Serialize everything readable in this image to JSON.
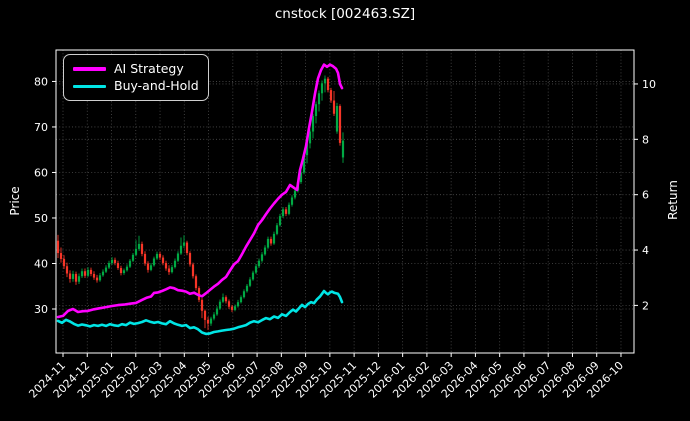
{
  "title": "cnstock [002463.SZ]",
  "axes": {
    "left_label": "Price",
    "right_label": "Return"
  },
  "legend": {
    "items": [
      {
        "label": "AI Strategy",
        "color": "#ff00ff"
      },
      {
        "label": "Buy-and-Hold",
        "color": "#00e5e5"
      }
    ]
  },
  "chart_data": {
    "type": "candlestick",
    "title": "cnstock [002463.SZ]",
    "grid": true,
    "legend_position": "upper-left",
    "price_axis": {
      "label": "Price",
      "ticks": [
        30,
        40,
        50,
        60,
        70,
        80
      ]
    },
    "return_axis": {
      "label": "Return",
      "ticks": [
        2,
        4,
        6,
        8,
        10
      ]
    },
    "x_tick_labels": [
      "2024-11",
      "2024-12",
      "2025-01",
      "2025-02",
      "2025-03",
      "2025-04",
      "2025-05",
      "2025-06",
      "2025-07",
      "2025-08",
      "2025-09",
      "2025-10",
      "2025-11",
      "2025-12",
      "2026-01",
      "2026-02",
      "2026-03",
      "2026-04",
      "2026-05",
      "2026-06",
      "2026-07",
      "2026-08",
      "2026-09",
      "2026-10"
    ],
    "candle_colors": {
      "up": "#00a944",
      "down": "#f73527"
    },
    "candles": {
      "x_start": 58,
      "x_step": 3,
      "ohlc": [
        [
          45.0,
          46.3,
          41.2,
          42.3
        ],
        [
          42.3,
          43.5,
          40.2,
          41.0
        ],
        [
          41.0,
          41.8,
          38.8,
          39.4
        ],
        [
          39.4,
          40.2,
          37.0,
          37.8
        ],
        [
          37.8,
          38.5,
          35.8,
          36.6
        ],
        [
          36.6,
          38.4,
          36.0,
          37.7
        ],
        [
          37.7,
          38.2,
          35.3,
          36.0
        ],
        [
          36.0,
          37.8,
          35.5,
          37.2
        ],
        [
          37.2,
          38.9,
          36.8,
          38.3
        ],
        [
          38.3,
          38.9,
          36.8,
          37.3
        ],
        [
          37.3,
          39.2,
          37.0,
          38.6
        ],
        [
          38.6,
          39.1,
          37.2,
          37.7
        ],
        [
          37.7,
          38.3,
          36.4,
          36.9
        ],
        [
          36.9,
          37.5,
          35.8,
          36.3
        ],
        [
          36.3,
          37.9,
          36.0,
          37.4
        ],
        [
          37.4,
          38.7,
          37.1,
          38.2
        ],
        [
          38.2,
          39.6,
          37.9,
          39.1
        ],
        [
          39.1,
          40.6,
          38.8,
          40.1
        ],
        [
          40.1,
          41.4,
          39.7,
          40.8
        ],
        [
          40.8,
          41.3,
          39.6,
          40.1
        ],
        [
          40.1,
          40.6,
          38.6,
          39.0
        ],
        [
          39.0,
          39.5,
          37.4,
          37.9
        ],
        [
          37.9,
          38.9,
          37.5,
          38.5
        ],
        [
          38.5,
          39.8,
          38.2,
          39.3
        ],
        [
          39.3,
          41.0,
          39.0,
          40.6
        ],
        [
          40.6,
          42.3,
          40.3,
          41.9
        ],
        [
          41.9,
          45.1,
          41.6,
          43.2
        ],
        [
          43.2,
          46.1,
          42.8,
          44.3
        ],
        [
          44.3,
          44.8,
          41.6,
          42.1
        ],
        [
          42.1,
          42.7,
          39.5,
          40.0
        ],
        [
          40.0,
          40.5,
          38.0,
          38.6
        ],
        [
          38.6,
          40.1,
          38.3,
          39.6
        ],
        [
          39.6,
          41.5,
          39.3,
          41.1
        ],
        [
          41.1,
          42.6,
          40.8,
          42.1
        ],
        [
          42.1,
          42.6,
          40.8,
          41.3
        ],
        [
          41.3,
          41.8,
          39.6,
          40.1
        ],
        [
          40.1,
          40.6,
          38.4,
          38.9
        ],
        [
          38.9,
          39.6,
          37.5,
          38.1
        ],
        [
          38.1,
          39.7,
          37.8,
          39.2
        ],
        [
          39.2,
          41.1,
          38.9,
          40.6
        ],
        [
          40.6,
          42.7,
          40.3,
          42.2
        ],
        [
          42.2,
          45.7,
          41.9,
          43.9
        ],
        [
          43.9,
          46.2,
          43.4,
          44.6
        ],
        [
          44.6,
          45.0,
          41.8,
          42.3
        ],
        [
          42.3,
          42.7,
          39.3,
          39.8
        ],
        [
          39.8,
          40.2,
          36.7,
          37.2
        ],
        [
          37.2,
          37.6,
          34.1,
          34.6
        ],
        [
          34.6,
          35.0,
          31.5,
          32.0
        ],
        [
          32.0,
          32.4,
          28.0,
          29.6
        ],
        [
          29.6,
          29.9,
          25.8,
          27.6
        ],
        [
          27.6,
          28.3,
          25.4,
          26.8
        ],
        [
          26.8,
          28.3,
          26.3,
          27.9
        ],
        [
          27.9,
          29.3,
          27.5,
          28.8
        ],
        [
          28.8,
          30.6,
          28.5,
          30.1
        ],
        [
          30.1,
          32.1,
          29.8,
          31.6
        ],
        [
          31.6,
          33.4,
          31.3,
          32.6
        ],
        [
          32.6,
          33.0,
          31.2,
          31.7
        ],
        [
          31.7,
          32.1,
          30.0,
          30.5
        ],
        [
          30.5,
          30.9,
          29.3,
          29.8
        ],
        [
          29.8,
          31.0,
          29.5,
          30.6
        ],
        [
          30.6,
          32.0,
          30.3,
          31.5
        ],
        [
          31.5,
          33.0,
          31.2,
          32.6
        ],
        [
          32.6,
          34.3,
          32.3,
          33.9
        ],
        [
          33.9,
          35.5,
          33.6,
          35.1
        ],
        [
          35.1,
          37.0,
          34.8,
          36.5
        ],
        [
          36.5,
          38.4,
          36.2,
          38.0
        ],
        [
          38.0,
          39.9,
          37.7,
          39.4
        ],
        [
          39.4,
          41.1,
          39.0,
          40.6
        ],
        [
          40.6,
          42.5,
          40.2,
          42.0
        ],
        [
          42.0,
          44.0,
          41.7,
          43.5
        ],
        [
          43.5,
          45.9,
          43.2,
          45.4
        ],
        [
          45.4,
          45.9,
          43.9,
          44.4
        ],
        [
          44.4,
          47.0,
          44.1,
          46.5
        ],
        [
          46.5,
          48.9,
          46.2,
          48.4
        ],
        [
          48.4,
          50.9,
          48.1,
          50.4
        ],
        [
          50.4,
          52.4,
          50.0,
          51.9
        ],
        [
          51.9,
          52.4,
          50.4,
          50.9
        ],
        [
          50.9,
          53.4,
          50.6,
          52.9
        ],
        [
          52.9,
          55.0,
          52.5,
          54.5
        ],
        [
          54.5,
          56.5,
          54.1,
          56.0
        ],
        [
          56.0,
          58.4,
          55.6,
          57.9
        ],
        [
          57.9,
          60.5,
          57.5,
          60.0
        ],
        [
          60.0,
          64.3,
          59.6,
          63.8
        ],
        [
          63.8,
          67.0,
          62.0,
          66.4
        ],
        [
          66.4,
          69.5,
          65.3,
          69.0
        ],
        [
          69.0,
          72.9,
          67.5,
          72.4
        ],
        [
          72.4,
          75.6,
          70.8,
          75.0
        ],
        [
          75.0,
          78.0,
          73.4,
          77.4
        ],
        [
          77.4,
          80.2,
          75.8,
          79.6
        ],
        [
          79.6,
          81.3,
          77.6,
          80.6
        ],
        [
          80.6,
          81.0,
          77.6,
          78.1
        ],
        [
          78.1,
          78.6,
          75.3,
          75.8
        ],
        [
          75.8,
          77.9,
          72.4,
          72.9
        ],
        [
          69.0,
          75.3,
          68.5,
          74.6
        ],
        [
          74.6,
          75.0,
          65.9,
          66.5
        ],
        [
          63.3,
          68.8,
          62.1,
          67.0
        ]
      ]
    },
    "series": [
      {
        "name": "AI Strategy",
        "axis": "return",
        "color": "#ff00ff",
        "points": [
          [
            58,
            1.58
          ],
          [
            63,
            1.62
          ],
          [
            68,
            1.8
          ],
          [
            73,
            1.87
          ],
          [
            78,
            1.76
          ],
          [
            83,
            1.79
          ],
          [
            88,
            1.8
          ],
          [
            94,
            1.86
          ],
          [
            100,
            1.9
          ],
          [
            106,
            1.94
          ],
          [
            112,
            1.98
          ],
          [
            118,
            2.01
          ],
          [
            124,
            2.03
          ],
          [
            130,
            2.06
          ],
          [
            136,
            2.09
          ],
          [
            142,
            2.2
          ],
          [
            147,
            2.28
          ],
          [
            151,
            2.32
          ],
          [
            154,
            2.45
          ],
          [
            158,
            2.47
          ],
          [
            162,
            2.52
          ],
          [
            166,
            2.58
          ],
          [
            170,
            2.65
          ],
          [
            174,
            2.62
          ],
          [
            178,
            2.55
          ],
          [
            182,
            2.53
          ],
          [
            186,
            2.5
          ],
          [
            190,
            2.42
          ],
          [
            194,
            2.46
          ],
          [
            198,
            2.38
          ],
          [
            202,
            2.33
          ],
          [
            206,
            2.44
          ],
          [
            210,
            2.56
          ],
          [
            214,
            2.68
          ],
          [
            218,
            2.78
          ],
          [
            222,
            2.92
          ],
          [
            226,
            3.03
          ],
          [
            230,
            3.26
          ],
          [
            234,
            3.48
          ],
          [
            238,
            3.6
          ],
          [
            242,
            3.85
          ],
          [
            246,
            4.12
          ],
          [
            250,
            4.36
          ],
          [
            254,
            4.6
          ],
          [
            258,
            4.9
          ],
          [
            262,
            5.08
          ],
          [
            266,
            5.3
          ],
          [
            270,
            5.5
          ],
          [
            274,
            5.68
          ],
          [
            278,
            5.85
          ],
          [
            282,
            6.0
          ],
          [
            286,
            6.1
          ],
          [
            290,
            6.35
          ],
          [
            294,
            6.25
          ],
          [
            297,
            6.17
          ],
          [
            300,
            6.89
          ],
          [
            303,
            7.3
          ],
          [
            306,
            7.75
          ],
          [
            309,
            8.4
          ],
          [
            312,
            9.0
          ],
          [
            315,
            9.65
          ],
          [
            318,
            10.2
          ],
          [
            321,
            10.5
          ],
          [
            324,
            10.7
          ],
          [
            327,
            10.62
          ],
          [
            330,
            10.7
          ],
          [
            333,
            10.64
          ],
          [
            336,
            10.55
          ],
          [
            338,
            10.4
          ],
          [
            340,
            10.0
          ],
          [
            342,
            9.85
          ]
        ]
      },
      {
        "name": "Buy-and-Hold",
        "axis": "return",
        "color": "#00e5e5",
        "points": [
          [
            58,
            1.44
          ],
          [
            62,
            1.37
          ],
          [
            66,
            1.48
          ],
          [
            70,
            1.42
          ],
          [
            74,
            1.33
          ],
          [
            78,
            1.27
          ],
          [
            82,
            1.31
          ],
          [
            86,
            1.28
          ],
          [
            90,
            1.24
          ],
          [
            94,
            1.29
          ],
          [
            98,
            1.26
          ],
          [
            102,
            1.3
          ],
          [
            106,
            1.26
          ],
          [
            110,
            1.32
          ],
          [
            114,
            1.28
          ],
          [
            118,
            1.26
          ],
          [
            122,
            1.32
          ],
          [
            126,
            1.29
          ],
          [
            130,
            1.38
          ],
          [
            134,
            1.33
          ],
          [
            138,
            1.36
          ],
          [
            142,
            1.4
          ],
          [
            146,
            1.46
          ],
          [
            150,
            1.41
          ],
          [
            154,
            1.37
          ],
          [
            158,
            1.4
          ],
          [
            162,
            1.35
          ],
          [
            166,
            1.32
          ],
          [
            170,
            1.43
          ],
          [
            174,
            1.35
          ],
          [
            178,
            1.3
          ],
          [
            182,
            1.26
          ],
          [
            186,
            1.29
          ],
          [
            190,
            1.18
          ],
          [
            194,
            1.21
          ],
          [
            198,
            1.14
          ],
          [
            202,
            1.02
          ],
          [
            206,
            0.97
          ],
          [
            210,
            0.99
          ],
          [
            214,
            1.04
          ],
          [
            218,
            1.06
          ],
          [
            222,
            1.09
          ],
          [
            226,
            1.11
          ],
          [
            230,
            1.13
          ],
          [
            234,
            1.16
          ],
          [
            238,
            1.21
          ],
          [
            242,
            1.25
          ],
          [
            246,
            1.29
          ],
          [
            250,
            1.38
          ],
          [
            254,
            1.43
          ],
          [
            258,
            1.39
          ],
          [
            262,
            1.47
          ],
          [
            266,
            1.54
          ],
          [
            270,
            1.5
          ],
          [
            274,
            1.6
          ],
          [
            278,
            1.55
          ],
          [
            282,
            1.68
          ],
          [
            286,
            1.62
          ],
          [
            290,
            1.76
          ],
          [
            293,
            1.85
          ],
          [
            296,
            1.78
          ],
          [
            299,
            1.9
          ],
          [
            302,
            2.02
          ],
          [
            305,
            1.94
          ],
          [
            308,
            2.05
          ],
          [
            311,
            2.12
          ],
          [
            314,
            2.08
          ],
          [
            317,
            2.22
          ],
          [
            320,
            2.32
          ],
          [
            322,
            2.42
          ],
          [
            324,
            2.52
          ],
          [
            326,
            2.45
          ],
          [
            328,
            2.4
          ],
          [
            330,
            2.47
          ],
          [
            332,
            2.5
          ],
          [
            334,
            2.46
          ],
          [
            336,
            2.44
          ],
          [
            338,
            2.42
          ],
          [
            340,
            2.3
          ],
          [
            342,
            2.12
          ]
        ]
      }
    ]
  }
}
